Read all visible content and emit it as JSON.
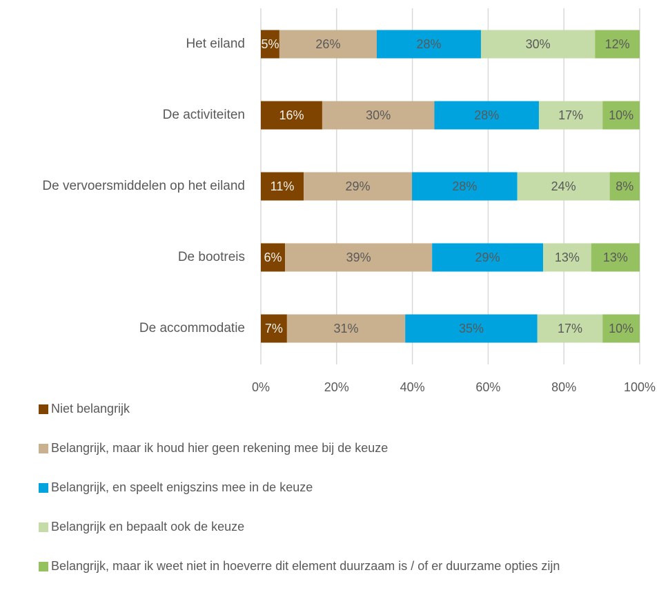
{
  "chart_data": {
    "type": "stacked-bar-horizontal",
    "categories": [
      "Het eiland",
      "De activiteiten",
      "De vervoersmiddelen op het eiland",
      "De bootreis",
      "De accommodatie"
    ],
    "series": [
      {
        "name": "Niet belangrijk",
        "color": "#7f4500",
        "values": [
          4.9,
          16.2,
          11.3,
          6.4,
          6.9
        ],
        "value_labels": [
          "5%",
          "16%",
          "11%",
          "6%",
          "7%"
        ]
      },
      {
        "name": "Belangrijk, maar ik houd hier geen rekening mee bij de keuze",
        "color": "#c9b08f",
        "values": [
          25.7,
          29.6,
          28.6,
          38.8,
          31.2
        ],
        "value_labels": [
          "26%",
          "30%",
          "29%",
          "39%",
          "31%"
        ]
      },
      {
        "name": "Belangrijk, en speelt enigszins mee in de keuze",
        "color": "#00a3de",
        "values": [
          27.5,
          27.6,
          27.8,
          29.3,
          34.9
        ],
        "value_labels": [
          "28%",
          "28%",
          "28%",
          "29%",
          "35%"
        ]
      },
      {
        "name": "Belangrijk en bepaalt ook de keuze",
        "color": "#c5dca8",
        "values": [
          30.1,
          16.8,
          24.4,
          12.7,
          17.2
        ],
        "value_labels": [
          "30%",
          "17%",
          "24%",
          "13%",
          "17%"
        ]
      },
      {
        "name": "Belangrijk, maar ik weet niet in hoeverre dit element duurzaam is / of er duurzame opties zijn",
        "color": "#96c160",
        "values": [
          11.8,
          9.8,
          7.9,
          12.8,
          9.8
        ],
        "value_labels": [
          "12%",
          "10%",
          "8%",
          "13%",
          "10%"
        ]
      }
    ],
    "xlim": [
      0,
      100
    ],
    "xticks": [
      {
        "value": 0,
        "label": "0%"
      },
      {
        "value": 20,
        "label": "20%"
      },
      {
        "value": 40,
        "label": "40%"
      },
      {
        "value": 60,
        "label": "60%"
      },
      {
        "value": 80,
        "label": "80%"
      },
      {
        "value": 100,
        "label": "100%"
      }
    ],
    "grid": true,
    "legend": "bottom"
  }
}
